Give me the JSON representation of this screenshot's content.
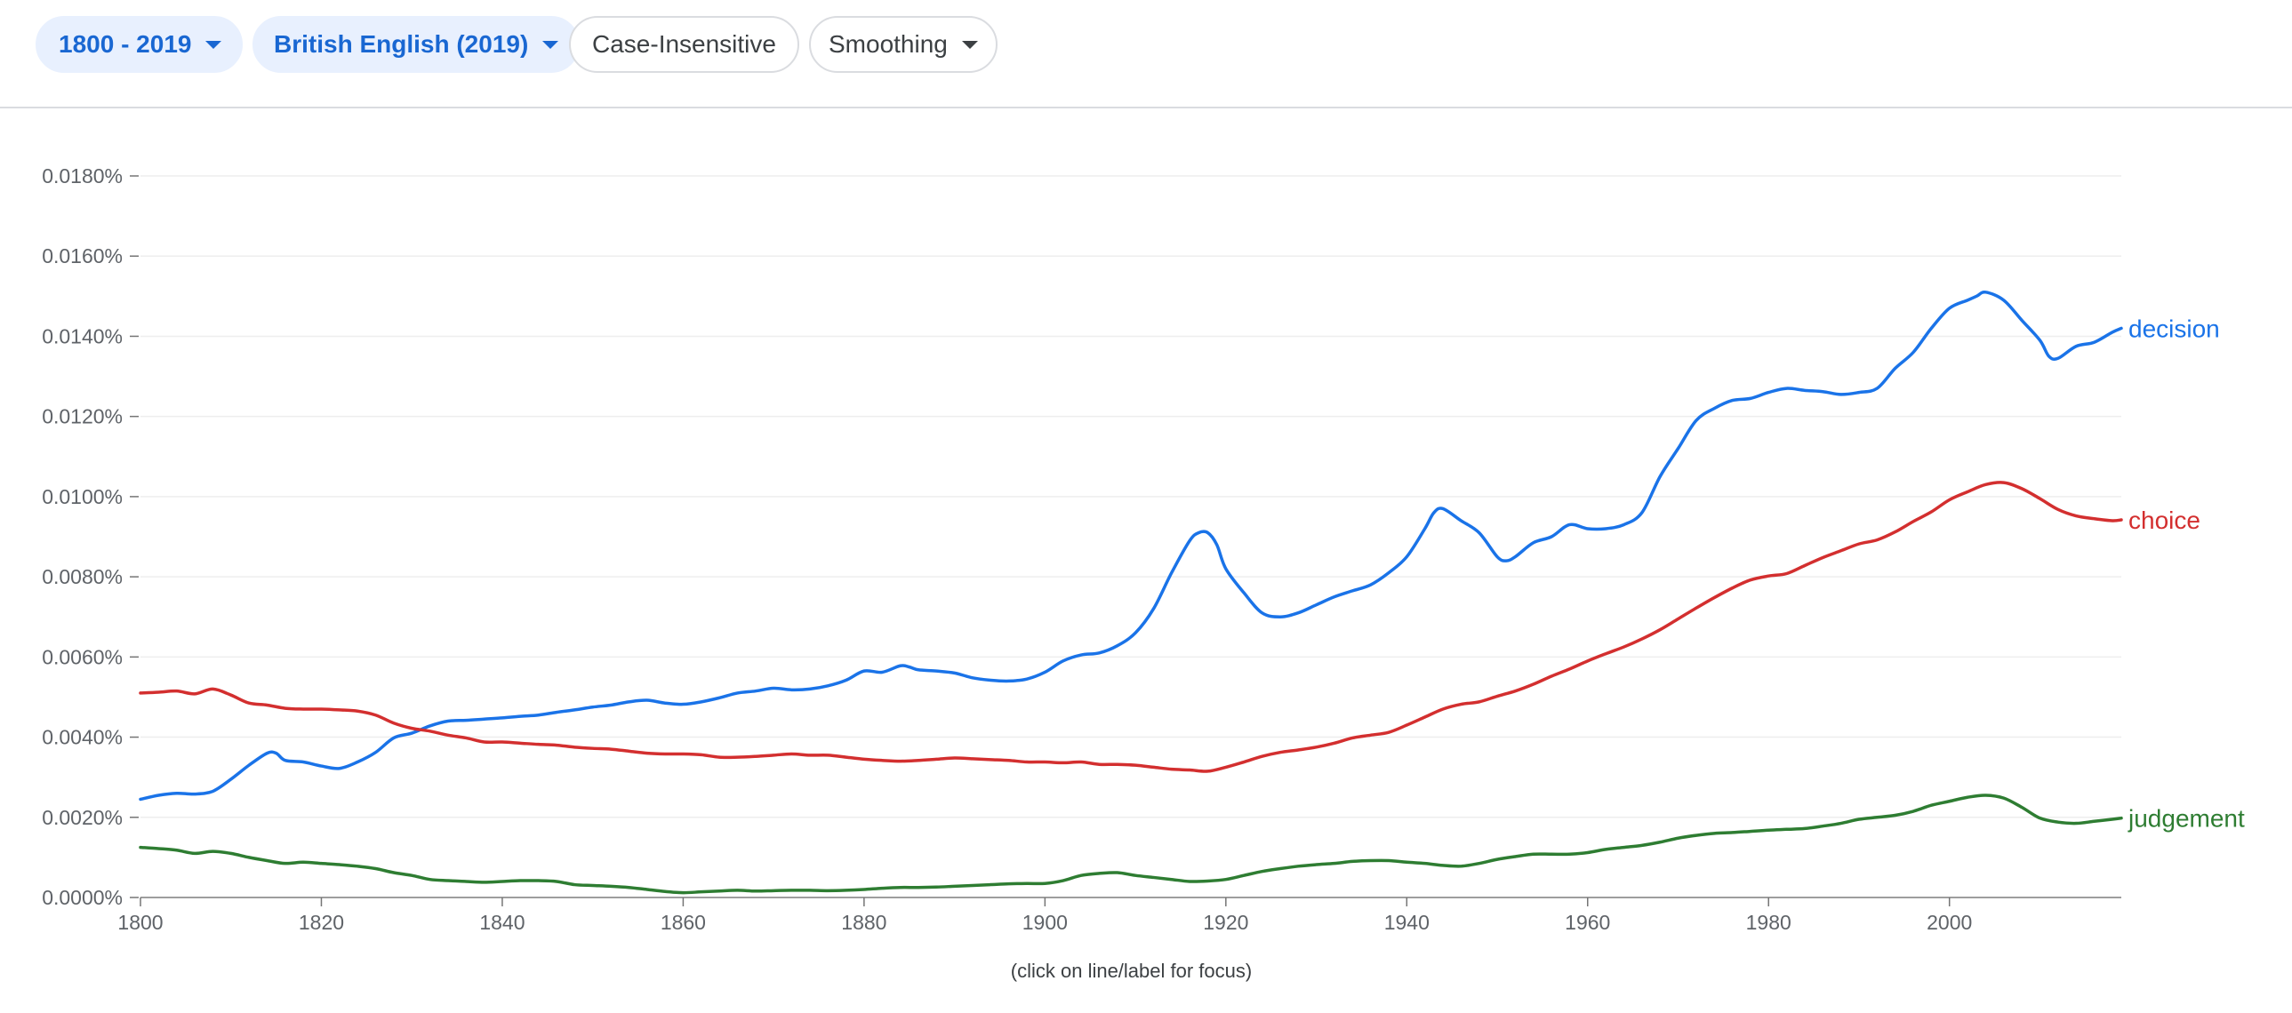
{
  "toolbar": {
    "year_range": "1800 - 2019",
    "corpus": "British English (2019)",
    "case": "Case-Insensitive",
    "smoothing": "Smoothing"
  },
  "hint": "(click on line/label for focus)",
  "colors": {
    "decision": "#1a73e8",
    "choice": "#d32f2f",
    "judgement": "#2e7d32",
    "grid": "#eeeeee",
    "axis": "#9e9e9e"
  },
  "chart_data": {
    "type": "line",
    "xlabel": "",
    "ylabel": "",
    "xlim": [
      1800,
      2019
    ],
    "ylim": [
      0,
      0.018
    ],
    "grid": true,
    "x_ticks": [
      1800,
      1820,
      1840,
      1860,
      1880,
      1900,
      1920,
      1940,
      1960,
      1980,
      2000
    ],
    "x_tick_labels": [
      "1800",
      "1820",
      "1840",
      "1860",
      "1880",
      "1900",
      "1920",
      "1940",
      "1960",
      "1980",
      "2000"
    ],
    "y_ticks": [
      0,
      0.002,
      0.004,
      0.006,
      0.008,
      0.01,
      0.012,
      0.014,
      0.016,
      0.018
    ],
    "y_tick_labels": [
      "0.0000%",
      "0.0020%",
      "0.0040%",
      "0.0060%",
      "0.0080%",
      "0.0100%",
      "0.0120%",
      "0.0140%",
      "0.0160%",
      "0.0180%"
    ],
    "series": [
      {
        "name": "decision",
        "color": "#1a73e8",
        "x": [
          1800,
          1802,
          1804,
          1806,
          1808,
          1810,
          1812,
          1814,
          1815,
          1816,
          1818,
          1820,
          1822,
          1824,
          1826,
          1828,
          1830,
          1832,
          1834,
          1836,
          1838,
          1840,
          1842,
          1844,
          1846,
          1848,
          1850,
          1852,
          1854,
          1856,
          1858,
          1860,
          1862,
          1864,
          1866,
          1868,
          1870,
          1872,
          1874,
          1876,
          1878,
          1880,
          1882,
          1884,
          1885,
          1886,
          1888,
          1890,
          1892,
          1894,
          1896,
          1898,
          1900,
          1902,
          1904,
          1906,
          1908,
          1910,
          1912,
          1914,
          1916,
          1917,
          1918,
          1919,
          1920,
          1922,
          1924,
          1926,
          1928,
          1930,
          1932,
          1934,
          1936,
          1938,
          1940,
          1942,
          1943,
          1944,
          1946,
          1948,
          1950,
          1951,
          1952,
          1954,
          1956,
          1958,
          1960,
          1962,
          1964,
          1966,
          1968,
          1970,
          1972,
          1974,
          1976,
          1978,
          1980,
          1982,
          1984,
          1986,
          1988,
          1990,
          1992,
          1994,
          1996,
          1998,
          2000,
          2002,
          2003,
          2004,
          2006,
          2008,
          2010,
          2011,
          2012,
          2014,
          2016,
          2018,
          2019
        ],
        "values": [
          0.00245,
          0.00255,
          0.0026,
          0.00258,
          0.00265,
          0.00295,
          0.0033,
          0.0036,
          0.0036,
          0.00342,
          0.00338,
          0.00328,
          0.00322,
          0.00338,
          0.00362,
          0.00398,
          0.0041,
          0.00428,
          0.0044,
          0.00442,
          0.00445,
          0.00448,
          0.00452,
          0.00455,
          0.00462,
          0.00468,
          0.00475,
          0.0048,
          0.00488,
          0.00492,
          0.00485,
          0.00482,
          0.00488,
          0.00498,
          0.0051,
          0.00515,
          0.00522,
          0.00518,
          0.0052,
          0.00528,
          0.00542,
          0.00565,
          0.00562,
          0.00578,
          0.00575,
          0.00568,
          0.00565,
          0.0056,
          0.00548,
          0.00542,
          0.0054,
          0.00545,
          0.00562,
          0.0059,
          0.00605,
          0.0061,
          0.00628,
          0.0066,
          0.0072,
          0.0081,
          0.0089,
          0.0091,
          0.0091,
          0.0088,
          0.0082,
          0.0076,
          0.0071,
          0.007,
          0.0071,
          0.0073,
          0.0075,
          0.00765,
          0.0078,
          0.0081,
          0.0085,
          0.0092,
          0.0096,
          0.0097,
          0.0094,
          0.0091,
          0.0085,
          0.0084,
          0.0085,
          0.00885,
          0.009,
          0.0093,
          0.0092,
          0.0092,
          0.0093,
          0.0096,
          0.0105,
          0.0112,
          0.0119,
          0.0122,
          0.0124,
          0.01245,
          0.0126,
          0.0127,
          0.01265,
          0.01262,
          0.01255,
          0.0126,
          0.0127,
          0.0132,
          0.0136,
          0.0142,
          0.0147,
          0.0149,
          0.015,
          0.0151,
          0.0149,
          0.0144,
          0.0139,
          0.0135,
          0.01345,
          0.01375,
          0.01385,
          0.0141,
          0.0142
        ]
      },
      {
        "name": "choice",
        "color": "#d32f2f",
        "x": [
          1800,
          1802,
          1804,
          1806,
          1808,
          1810,
          1812,
          1814,
          1816,
          1818,
          1820,
          1822,
          1824,
          1826,
          1828,
          1830,
          1832,
          1834,
          1836,
          1838,
          1840,
          1842,
          1844,
          1846,
          1848,
          1850,
          1852,
          1854,
          1856,
          1858,
          1860,
          1862,
          1864,
          1866,
          1868,
          1870,
          1872,
          1874,
          1876,
          1878,
          1880,
          1882,
          1884,
          1886,
          1888,
          1890,
          1892,
          1894,
          1896,
          1898,
          1900,
          1902,
          1904,
          1906,
          1908,
          1910,
          1912,
          1914,
          1916,
          1918,
          1920,
          1922,
          1924,
          1926,
          1928,
          1930,
          1932,
          1934,
          1936,
          1938,
          1940,
          1942,
          1944,
          1946,
          1948,
          1950,
          1952,
          1954,
          1956,
          1958,
          1960,
          1962,
          1964,
          1966,
          1968,
          1970,
          1972,
          1974,
          1976,
          1978,
          1980,
          1982,
          1984,
          1986,
          1988,
          1990,
          1992,
          1994,
          1996,
          1998,
          2000,
          2002,
          2004,
          2006,
          2008,
          2010,
          2012,
          2014,
          2016,
          2018,
          2019
        ],
        "values": [
          0.0051,
          0.00512,
          0.00515,
          0.00508,
          0.0052,
          0.00505,
          0.00485,
          0.0048,
          0.00472,
          0.0047,
          0.0047,
          0.00468,
          0.00465,
          0.00455,
          0.00435,
          0.00422,
          0.00415,
          0.00405,
          0.00398,
          0.00388,
          0.00388,
          0.00385,
          0.00382,
          0.0038,
          0.00375,
          0.00372,
          0.0037,
          0.00365,
          0.0036,
          0.00358,
          0.00358,
          0.00356,
          0.0035,
          0.0035,
          0.00352,
          0.00355,
          0.00358,
          0.00355,
          0.00355,
          0.0035,
          0.00345,
          0.00342,
          0.0034,
          0.00342,
          0.00345,
          0.00348,
          0.00346,
          0.00344,
          0.00342,
          0.00338,
          0.00338,
          0.00336,
          0.00338,
          0.00332,
          0.00332,
          0.0033,
          0.00325,
          0.0032,
          0.00318,
          0.00315,
          0.00325,
          0.00338,
          0.00352,
          0.00362,
          0.00368,
          0.00375,
          0.00385,
          0.00398,
          0.00405,
          0.00412,
          0.0043,
          0.0045,
          0.0047,
          0.00482,
          0.00488,
          0.00502,
          0.00515,
          0.00532,
          0.00552,
          0.0057,
          0.0059,
          0.00608,
          0.00625,
          0.00645,
          0.00668,
          0.00695,
          0.00722,
          0.00748,
          0.00772,
          0.00792,
          0.00802,
          0.00808,
          0.00828,
          0.00848,
          0.00865,
          0.00882,
          0.00892,
          0.00912,
          0.00938,
          0.00962,
          0.00992,
          0.01012,
          0.0103,
          0.01035,
          0.0102,
          0.00995,
          0.00968,
          0.00952,
          0.00945,
          0.0094,
          0.00942
        ]
      },
      {
        "name": "judgement",
        "color": "#2e7d32",
        "x": [
          1800,
          1802,
          1804,
          1806,
          1808,
          1810,
          1812,
          1814,
          1816,
          1818,
          1820,
          1822,
          1824,
          1826,
          1828,
          1830,
          1832,
          1834,
          1836,
          1838,
          1840,
          1842,
          1844,
          1846,
          1848,
          1850,
          1852,
          1854,
          1856,
          1858,
          1860,
          1862,
          1864,
          1866,
          1868,
          1870,
          1872,
          1874,
          1876,
          1878,
          1880,
          1882,
          1884,
          1886,
          1888,
          1890,
          1892,
          1894,
          1896,
          1898,
          1900,
          1902,
          1904,
          1906,
          1908,
          1910,
          1912,
          1914,
          1916,
          1918,
          1920,
          1922,
          1924,
          1926,
          1928,
          1930,
          1932,
          1934,
          1936,
          1938,
          1940,
          1942,
          1944,
          1946,
          1948,
          1950,
          1952,
          1954,
          1956,
          1958,
          1960,
          1962,
          1964,
          1966,
          1968,
          1970,
          1972,
          1974,
          1976,
          1978,
          1980,
          1982,
          1984,
          1986,
          1988,
          1990,
          1992,
          1994,
          1996,
          1998,
          2000,
          2002,
          2004,
          2006,
          2008,
          2010,
          2012,
          2014,
          2016,
          2018,
          2019
        ],
        "values": [
          0.00125,
          0.00122,
          0.00118,
          0.0011,
          0.00115,
          0.0011,
          0.001,
          0.00092,
          0.00085,
          0.00088,
          0.00085,
          0.00082,
          0.00078,
          0.00072,
          0.00062,
          0.00055,
          0.00045,
          0.00042,
          0.0004,
          0.00038,
          0.0004,
          0.00042,
          0.00042,
          0.0004,
          0.00032,
          0.0003,
          0.00028,
          0.00025,
          0.0002,
          0.00015,
          0.00012,
          0.00014,
          0.00016,
          0.00018,
          0.00016,
          0.00017,
          0.00018,
          0.00018,
          0.00017,
          0.00018,
          0.0002,
          0.00023,
          0.00025,
          0.00025,
          0.00026,
          0.00028,
          0.0003,
          0.00032,
          0.00034,
          0.00035,
          0.00035,
          0.00042,
          0.00055,
          0.0006,
          0.00062,
          0.00055,
          0.0005,
          0.00045,
          0.0004,
          0.00041,
          0.00045,
          0.00055,
          0.00065,
          0.00072,
          0.00078,
          0.00082,
          0.00085,
          0.0009,
          0.00092,
          0.00092,
          0.00088,
          0.00085,
          0.0008,
          0.00078,
          0.00085,
          0.00095,
          0.00102,
          0.00108,
          0.00108,
          0.00108,
          0.00112,
          0.0012,
          0.00125,
          0.0013,
          0.00138,
          0.00148,
          0.00155,
          0.0016,
          0.00162,
          0.00165,
          0.00168,
          0.0017,
          0.00172,
          0.00178,
          0.00185,
          0.00195,
          0.002,
          0.00205,
          0.00215,
          0.0023,
          0.0024,
          0.0025,
          0.00255,
          0.00248,
          0.00225,
          0.00198,
          0.00188,
          0.00185,
          0.0019,
          0.00195,
          0.00198
        ]
      }
    ]
  }
}
